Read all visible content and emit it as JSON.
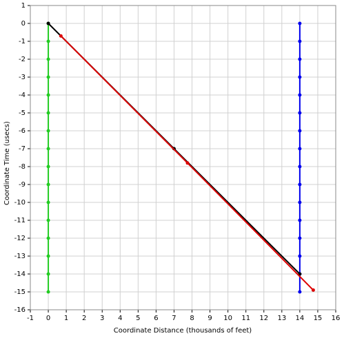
{
  "chart_data": {
    "type": "line",
    "x_label": "Coordinate Distance (thousands of feet)",
    "y_label": "Coordinate Time (usecs)",
    "xlim": [
      -1,
      16
    ],
    "ylim": [
      -16,
      1
    ],
    "xticks": [
      -1,
      0,
      1,
      2,
      3,
      4,
      5,
      6,
      7,
      8,
      9,
      10,
      11,
      12,
      13,
      14,
      15,
      16
    ],
    "yticks": [
      -16,
      -15,
      -14,
      -13,
      -12,
      -11,
      -10,
      -9,
      -8,
      -7,
      -6,
      -5,
      -4,
      -3,
      -2,
      -1,
      0,
      1
    ],
    "grid": true,
    "series": [
      {
        "color": "#22cc22",
        "x": [
          0,
          0,
          0,
          0,
          0,
          0,
          0,
          0,
          0,
          0,
          0,
          0,
          0,
          0,
          0,
          0
        ],
        "values": [
          0,
          -1,
          -2,
          -3,
          -4,
          -5,
          -6,
          -7,
          -8,
          -9,
          -10,
          -11,
          -12,
          -13,
          -14,
          -15
        ]
      },
      {
        "color": "#0000ee",
        "x": [
          14,
          14,
          14,
          14,
          14,
          14,
          14,
          14,
          14,
          14,
          14,
          14,
          14,
          14,
          14,
          14
        ],
        "values": [
          0,
          -1,
          -2,
          -3,
          -4,
          -5,
          -6,
          -7,
          -8,
          -9,
          -10,
          -11,
          -12,
          -13,
          -14,
          -15
        ]
      },
      {
        "color": "#000000",
        "x": [
          0,
          7,
          14
        ],
        "values": [
          0,
          -7,
          -14
        ]
      },
      {
        "color": "#dd0000",
        "x": [
          0.7,
          7.75,
          14.75
        ],
        "values": [
          -0.7,
          -7.8,
          -14.9
        ]
      }
    ]
  }
}
